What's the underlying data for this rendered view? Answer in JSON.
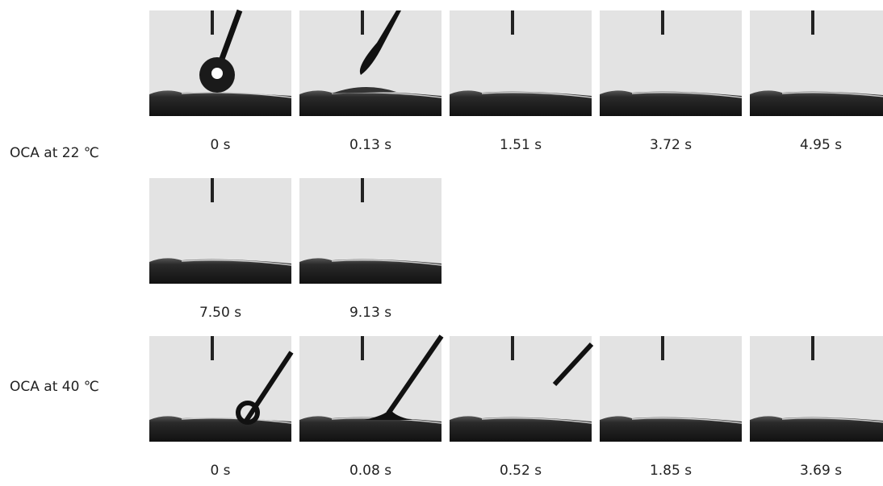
{
  "groups": [
    {
      "label": "OCA at 22 ℃",
      "frames": [
        "0 s",
        "0.13 s",
        "1.51 s",
        "3.72 s",
        "4.95 s",
        "7.50 s",
        "9.13 s"
      ]
    },
    {
      "label": "OCA at 40 ℃",
      "frames": [
        "0 s",
        "0.08 s",
        "0.52 s",
        "1.85 s",
        "3.69 s"
      ]
    }
  ]
}
